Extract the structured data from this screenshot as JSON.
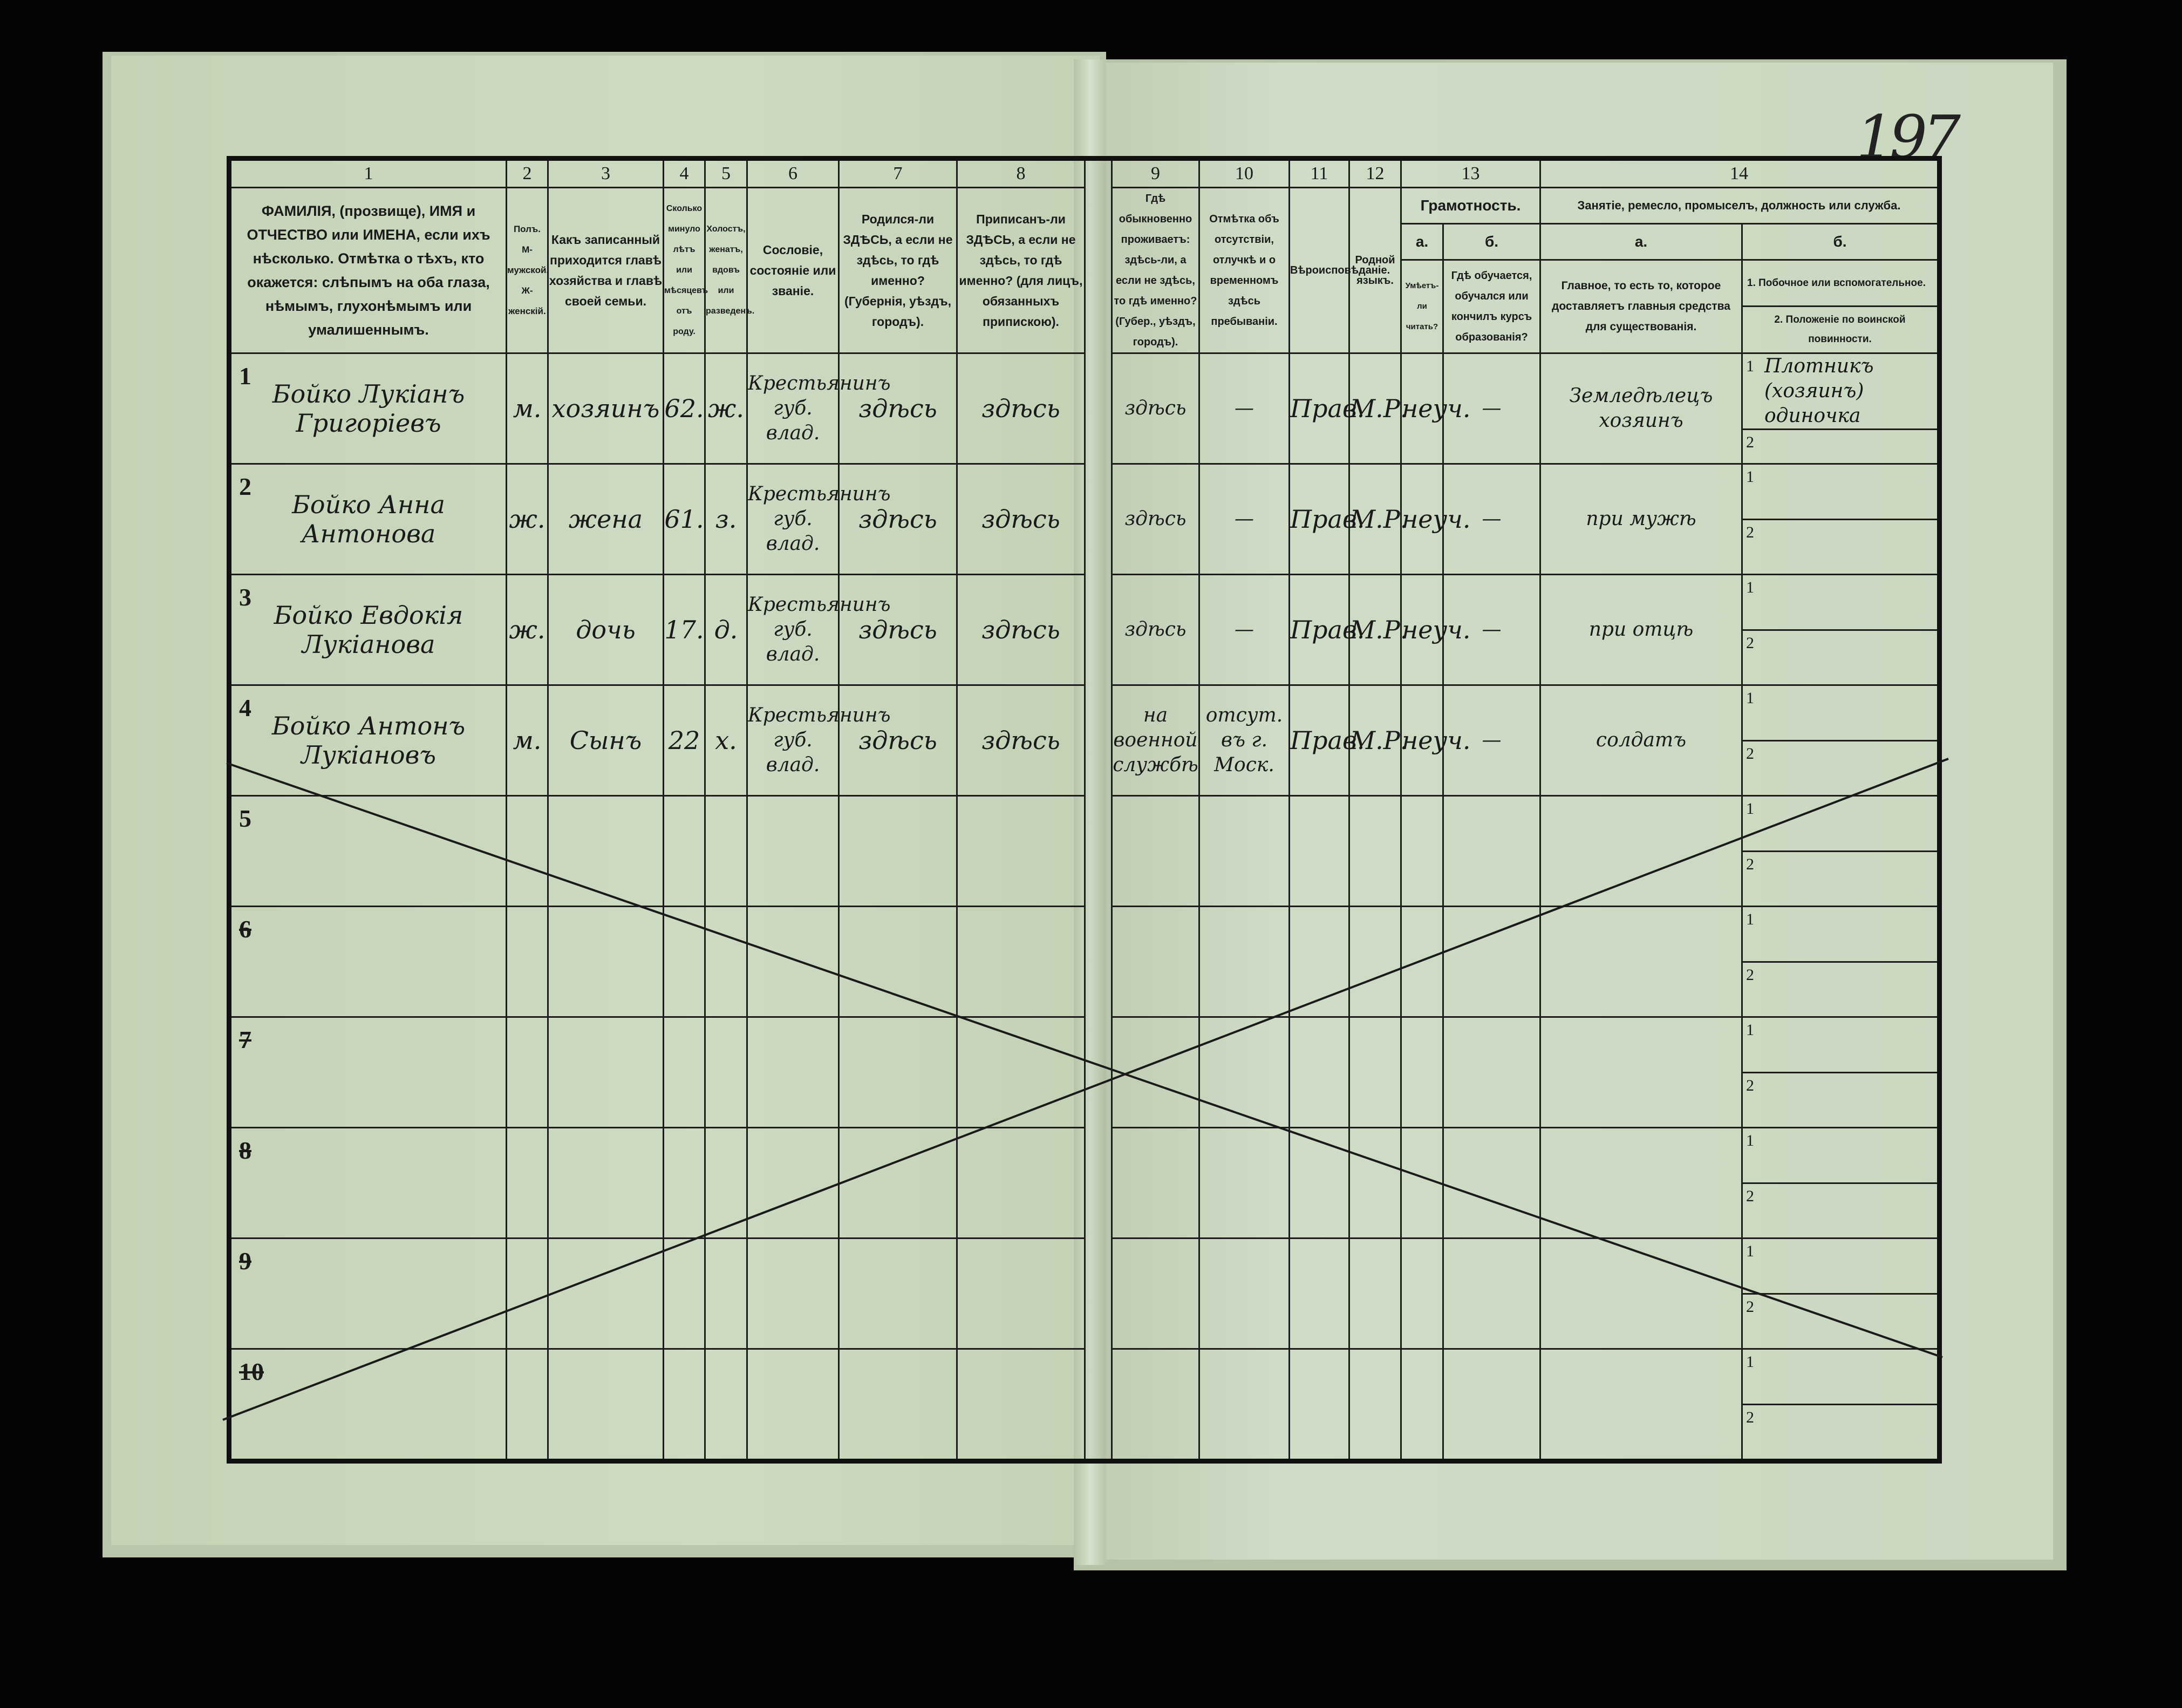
{
  "page_number": "197",
  "columns": {
    "n1": "1",
    "n2": "2",
    "n3": "3",
    "n4": "4",
    "n5": "5",
    "n6": "6",
    "n7": "7",
    "n8": "8",
    "n9": "9",
    "n10": "10",
    "n11": "11",
    "n12": "12",
    "n13": "13",
    "n14": "14",
    "c1": "ФАМИЛІЯ, (прозвище), ИМЯ и ОТЧЕСТВО или ИМЕНА, если ихъ нѣсколько. Отмѣтка о тѣхъ, кто окажется: слѣпымъ на оба глаза, нѣмымъ, глухонѣмымъ или умалишеннымъ.",
    "c2": "Полъ. М-мужской. Ж-женскій.",
    "c3": "Какъ записанный приходится главѣ хозяйства и главѣ своей семьи.",
    "c4": "Сколько минуло лѣтъ или мѣсяцевъ отъ роду.",
    "c5": "Холостъ, женатъ, вдовъ или разведенъ.",
    "c6": "Сословіе, состояніе или званіе.",
    "c7": "Родился-ли ЗДѢСЬ, а если не здѣсь, то гдѣ именно? (Губернія, уѣздъ, городъ).",
    "c8": "Приписанъ-ли ЗДѢСЬ, а если не здѣсь, то гдѣ именно? (для лицъ, обязанныхъ припискою).",
    "c9": "Гдѣ обыкновенно проживаетъ: здѣсь-ли, а если не здѣсь, то гдѣ именно? (Губер., уѣздъ, городъ).",
    "c10": "Отмѣтка объ отсутствіи, отлучкѣ и о временномъ здѣсь пребываніи.",
    "c11": "Вѣроисповѣданіе.",
    "c12": "Родной языкъ.",
    "c13": "Грамотность.",
    "c13a_letter": "а.",
    "c13b_letter": "б.",
    "c13a": "Умѣетъ-ли читать?",
    "c13b": "Гдѣ обучается, обучался или кончилъ курсъ образованія?",
    "c14": "Занятіе, ремесло, промыселъ, должность или служба.",
    "c14a_letter": "а.",
    "c14b_letter": "б.",
    "c14a": "Главное, то есть то, которое доставляетъ главныя средства для существованія.",
    "c14b_1": "1. Побочное или вспомогательное.",
    "c14b_2": "2. Положеніе по воинской повинности."
  },
  "sub_labels": [
    "1",
    "2"
  ],
  "rows": [
    {
      "num": "1",
      "name": "Бойко Лукіанъ Григоріевъ",
      "sex": "м.",
      "relation": "хозяинъ",
      "age": "62.",
      "marital": "ж.",
      "estate": "Крестьянинъ губ. влад.",
      "born": "здѣсь",
      "registered": "здѣсь",
      "resides": "здѣсь",
      "absence": "—",
      "religion": "Прав.",
      "language": "М.Р.",
      "literate": "неуч.",
      "education": "—",
      "occupation": "Земледѣлецъ хозяинъ",
      "secondary": "Плотникъ (хозяинъ) одиночка",
      "military": ""
    },
    {
      "num": "2",
      "name": "Бойко Анна Антонова",
      "sex": "ж.",
      "relation": "жена",
      "age": "61.",
      "marital": "з.",
      "estate": "Крестьянинъ губ. влад.",
      "born": "здѣсь",
      "registered": "здѣсь",
      "resides": "здѣсь",
      "absence": "—",
      "religion": "Прав.",
      "language": "М.Р.",
      "literate": "неуч.",
      "education": "—",
      "occupation": "при мужѣ",
      "secondary": "",
      "military": ""
    },
    {
      "num": "3",
      "name": "Бойко Евдокія Лукіанова",
      "sex": "ж.",
      "relation": "дочь",
      "age": "17.",
      "marital": "д.",
      "estate": "Крестьянинъ губ. влад.",
      "born": "здѣсь",
      "registered": "здѣсь",
      "resides": "здѣсь",
      "absence": "—",
      "religion": "Прав.",
      "language": "М.Р.",
      "literate": "неуч.",
      "education": "—",
      "occupation": "при отцѣ",
      "secondary": "",
      "military": ""
    },
    {
      "num": "4",
      "name": "Бойко Антонъ Лукіановъ",
      "sex": "м.",
      "relation": "Сынъ",
      "age": "22",
      "marital": "х.",
      "estate": "Крестьянинъ губ. влад.",
      "born": "здѣсь",
      "registered": "здѣсь",
      "resides": "на военной службѣ",
      "absence": "отсут. въ г. Моск.",
      "religion": "Прав.",
      "language": "М.Р.",
      "literate": "неуч.",
      "education": "—",
      "occupation": "солдатъ",
      "secondary": "",
      "military": ""
    },
    {
      "num": "5"
    },
    {
      "num": "6"
    },
    {
      "num": "7"
    },
    {
      "num": "8"
    },
    {
      "num": "9"
    },
    {
      "num": "10"
    }
  ]
}
